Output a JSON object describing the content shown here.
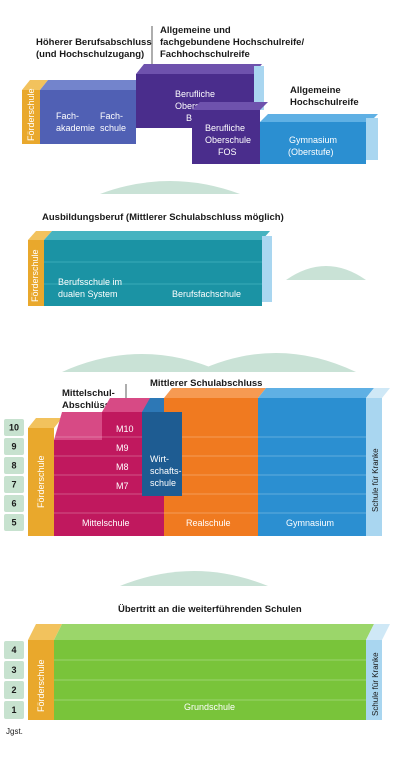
{
  "colors": {
    "foerder": "#e9a82c",
    "foerder_top": "#f2c25d",
    "purple": "#4a2d8c",
    "purple_top": "#6e52ad",
    "slate": "#5060b4",
    "slate_top": "#7384cc",
    "blue": "#2b8fd1",
    "blue_top": "#5fb0e4",
    "light_blue": "#a9d6f0",
    "teal": "#1b93a4",
    "teal_top": "#46b3c0",
    "magenta": "#c0185e",
    "magenta_top": "#d74a85",
    "dark_blue": "#1e5c92",
    "orange": "#f07a20",
    "orange_top": "#f69a52",
    "green": "#79c43a",
    "green_top": "#9bd66a",
    "hill": "#c9e2d6",
    "grade_box": "#c7e2cf"
  },
  "top": {
    "header_left": [
      "Höherer Berufsabschluss",
      "(und Hochschulzugang)"
    ],
    "header_mid": [
      "Allgemeine und",
      "fachgebundene Hochschulreife/",
      "Fachhochschulreife"
    ],
    "header_right": [
      "Allgemeine",
      "Hochschulreife"
    ],
    "foerderschule": "Förderschule",
    "fachakademie": [
      "Fach-",
      "akademie"
    ],
    "fachschule": [
      "Fach-",
      "schule"
    ],
    "bos": [
      "Berufliche",
      "Oberschule",
      "BOS"
    ],
    "fos": [
      "Berufliche",
      "Oberschule",
      "FOS"
    ],
    "gymnasium": [
      "Gymnasium",
      "(Oberstufe)"
    ]
  },
  "middle": {
    "header": "Ausbildungsberuf (Mittlerer Schulabschluss möglich)",
    "foerderschule": "Förderschule",
    "berufsschule": [
      "Berufsschule im",
      "dualen System"
    ],
    "berufsfachschule": "Berufsfachschule"
  },
  "lower": {
    "header_left": [
      "Mittelschul-",
      "Abschlüsse"
    ],
    "header_right": "Mittlerer Schulabschluss",
    "grades": [
      "10",
      "9",
      "8",
      "7",
      "6",
      "5"
    ],
    "foerderschule": "Förderschule",
    "m_levels": [
      "M10",
      "M9",
      "M8",
      "M7"
    ],
    "mittelschule": "Mittelschule",
    "wirtschaftsschule": [
      "Wirt-",
      "schafts-",
      "schule"
    ],
    "realschule": "Realschule",
    "gymnasium": "Gymnasium",
    "schule_kranke": "Schule für Kranke"
  },
  "bottom": {
    "header": "Übertritt an die weiterführenden Schulen",
    "grades": [
      "4",
      "3",
      "2",
      "1"
    ],
    "foerderschule": "Förderschule",
    "grundschule": "Grundschule",
    "schule_kranke": "Schule für Kranke",
    "jgst": "Jgst."
  }
}
